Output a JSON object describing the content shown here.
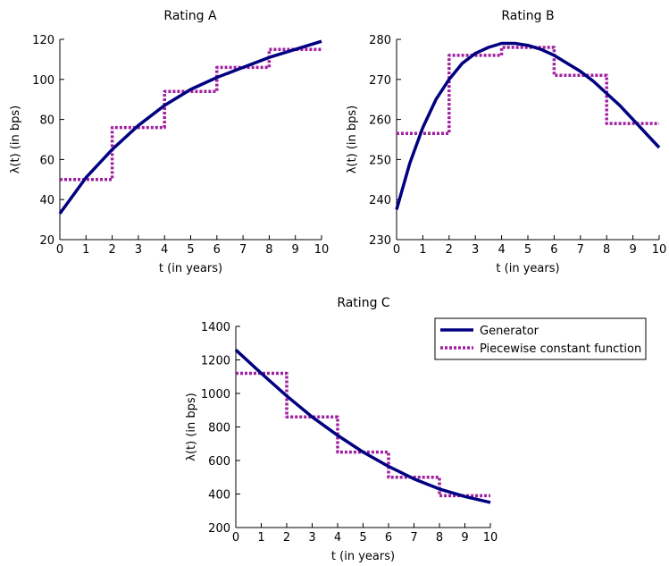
{
  "colors": {
    "generator": "#000080",
    "piecewise": "#a020a0",
    "axis": "#000000",
    "background": "#ffffff"
  },
  "legend": {
    "placement": "top-right of Rating C panel",
    "generator_label": "Generator",
    "piecewise_label": "Piecewise constant function"
  },
  "chart_data": [
    {
      "type": "line",
      "title": "Rating A",
      "xlabel": "t (in years)",
      "ylabel": "λ(t)  (in bps)",
      "xlim": [
        0,
        10
      ],
      "ylim": [
        20,
        120
      ],
      "xticks": [
        0,
        1,
        2,
        3,
        4,
        5,
        6,
        7,
        8,
        9,
        10
      ],
      "yticks": [
        20,
        40,
        60,
        80,
        100,
        120
      ],
      "grid": false,
      "series": [
        {
          "name": "Generator",
          "style": "solid",
          "x": [
            0,
            1,
            2,
            3,
            4,
            5,
            6,
            7,
            8,
            9,
            10
          ],
          "y": [
            33,
            51,
            65,
            77,
            87,
            95,
            101,
            106,
            111,
            115,
            119
          ]
        },
        {
          "name": "Piecewise constant function",
          "style": "dotted-step",
          "x": [
            0,
            2,
            2,
            4,
            4,
            6,
            6,
            8,
            8,
            10
          ],
          "y": [
            50,
            50,
            76,
            76,
            94,
            94,
            106,
            106,
            115,
            115
          ]
        }
      ]
    },
    {
      "type": "line",
      "title": "Rating B",
      "xlabel": "t (in years)",
      "ylabel": "λ(t)  (in bps)",
      "xlim": [
        0,
        10
      ],
      "ylim": [
        230,
        280
      ],
      "xticks": [
        0,
        1,
        2,
        3,
        4,
        5,
        6,
        7,
        8,
        9,
        10
      ],
      "yticks": [
        230,
        240,
        250,
        260,
        270,
        280
      ],
      "grid": false,
      "series": [
        {
          "name": "Generator",
          "style": "solid",
          "x": [
            0,
            0.5,
            1,
            1.5,
            2,
            2.5,
            3,
            3.5,
            4,
            4.5,
            5,
            5.5,
            6,
            6.5,
            7,
            7.5,
            8,
            8.5,
            9,
            9.5,
            10
          ],
          "y": [
            237.5,
            249,
            258,
            265,
            270,
            274,
            276.5,
            278,
            279,
            279,
            278.5,
            277.5,
            276,
            274,
            272,
            269.5,
            266.5,
            263.5,
            260,
            256.5,
            253
          ]
        },
        {
          "name": "Piecewise constant function",
          "style": "dotted-step",
          "x": [
            0,
            2,
            2,
            4,
            4,
            6,
            6,
            8,
            8,
            10
          ],
          "y": [
            256.5,
            256.5,
            276,
            276,
            278,
            278,
            271,
            271,
            259,
            259
          ]
        }
      ]
    },
    {
      "type": "line",
      "title": "Rating C",
      "xlabel": "t (in years)",
      "ylabel": "λ(t)  (in bps)",
      "xlim": [
        0,
        10
      ],
      "ylim": [
        200,
        1400
      ],
      "xticks": [
        0,
        1,
        2,
        3,
        4,
        5,
        6,
        7,
        8,
        9,
        10
      ],
      "yticks": [
        200,
        400,
        600,
        800,
        1000,
        1200,
        1400
      ],
      "grid": false,
      "series": [
        {
          "name": "Generator",
          "style": "solid",
          "x": [
            0,
            1,
            2,
            3,
            4,
            5,
            6,
            7,
            8,
            9,
            10
          ],
          "y": [
            1260,
            1120,
            985,
            860,
            750,
            650,
            565,
            490,
            430,
            385,
            350
          ]
        },
        {
          "name": "Piecewise constant function",
          "style": "dotted-step",
          "x": [
            0,
            2,
            2,
            4,
            4,
            6,
            6,
            8,
            8,
            10
          ],
          "y": [
            1120,
            1120,
            860,
            860,
            650,
            650,
            500,
            500,
            390,
            390
          ]
        }
      ]
    }
  ]
}
